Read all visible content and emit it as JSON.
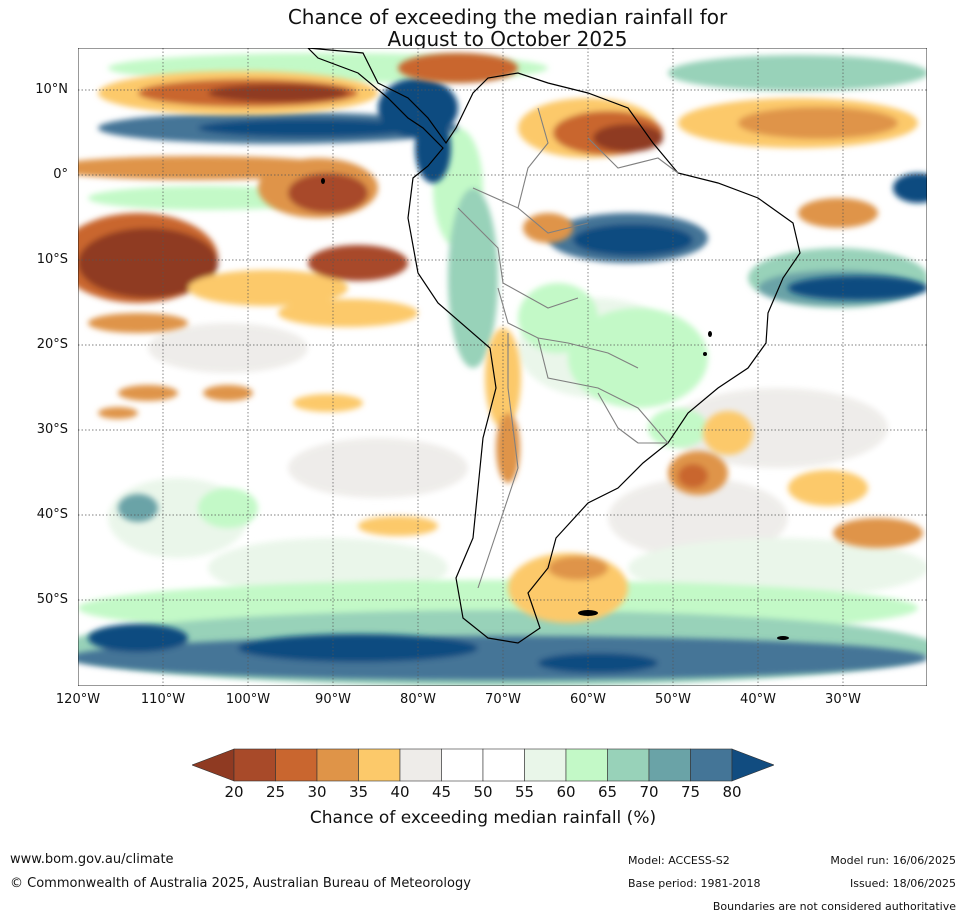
{
  "title": {
    "line1": "Chance of exceeding the median rainfall for",
    "line2": "August to October 2025"
  },
  "map": {
    "lat_labels": [
      "10°N",
      "0°",
      "10°S",
      "20°S",
      "30°S",
      "40°S",
      "50°S"
    ],
    "lon_labels": [
      "120°W",
      "110°W",
      "100°W",
      "90°W",
      "80°W",
      "70°W",
      "60°W",
      "50°W",
      "40°W",
      "30°W"
    ]
  },
  "colorbar": {
    "ticks": [
      "20",
      "25",
      "30",
      "35",
      "40",
      "45",
      "50",
      "55",
      "60",
      "65",
      "70",
      "75",
      "80"
    ],
    "colors": [
      "#8f3a22",
      "#a84a29",
      "#c9662f",
      "#df9448",
      "#fcc96a",
      "#eeece9",
      "#ffffff",
      "#ffffff",
      "#e9f6e9",
      "#c3f9c7",
      "#98d2b9",
      "#6aa3a7",
      "#447597",
      "#114c80"
    ],
    "label": "Chance of exceeding median rainfall (%)"
  },
  "footer": {
    "url": "www.bom.gov.au/climate",
    "copyright": "© Commonwealth of Australia 2025, Australian Bureau of Meteorology",
    "model": "Model: ACCESS-S2",
    "base_period": "Base period: 1981-2018",
    "model_run": "Model run: 16/06/2025",
    "issued": "Issued: 18/06/2025",
    "disclaimer": "Boundaries are not considered authoritative"
  }
}
